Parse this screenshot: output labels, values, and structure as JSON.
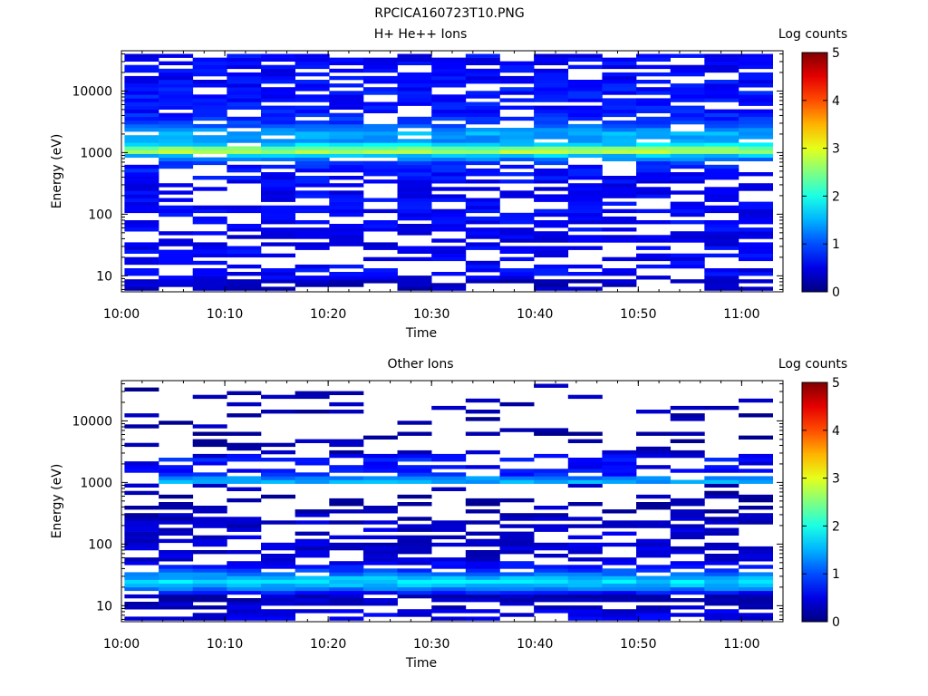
{
  "figure": {
    "title": "RPCICA160723T10.PNG"
  },
  "chart_data": [
    {
      "type": "heatmap",
      "title": "H+ He++ Ions",
      "xlabel": "Time",
      "ylabel": "Energy (eV)",
      "x_ticks": [
        "10:00",
        "10:10",
        "10:20",
        "10:30",
        "10:40",
        "10:50",
        "11:00"
      ],
      "y_ticks": [
        "10",
        "100",
        "1000",
        "10000"
      ],
      "yscale": "log",
      "ylim": [
        5.5,
        45000
      ],
      "xlim_minutes": [
        0,
        64
      ],
      "colorbar": {
        "label": "Log counts",
        "ticks": [
          "0",
          "1",
          "2",
          "3",
          "4",
          "5"
        ],
        "range": [
          0,
          5
        ],
        "colormap": "jet"
      },
      "profile": {
        "description_only": false,
        "energy_eV": [
          8,
          10,
          12,
          18,
          25,
          40,
          60,
          100,
          180,
          300,
          500,
          700,
          900,
          1050,
          1150,
          1300,
          1600,
          2000,
          2400,
          3000,
          5000,
          10000,
          20000,
          35000
        ],
        "log_counts": [
          0.3,
          0.6,
          0.6,
          0.6,
          0.6,
          0.5,
          0.6,
          0.6,
          0.6,
          0.6,
          0.7,
          0.9,
          1.6,
          2.9,
          2.6,
          1.8,
          1.3,
          1.5,
          1.3,
          0.9,
          0.7,
          0.7,
          0.6,
          0.6
        ],
        "gap_probability": [
          0.45,
          0.35,
          0.55,
          0.5,
          0.45,
          0.4,
          0.4,
          0.35,
          0.35,
          0.35,
          0.3,
          0.25,
          0.12,
          0.0,
          0.0,
          0.05,
          0.15,
          0.1,
          0.12,
          0.2,
          0.25,
          0.25,
          0.25,
          0.25
        ]
      }
    },
    {
      "type": "heatmap",
      "title": "Other Ions",
      "xlabel": "Time",
      "ylabel": "Energy (eV)",
      "x_ticks": [
        "10:00",
        "10:10",
        "10:20",
        "10:30",
        "10:40",
        "10:50",
        "11:00"
      ],
      "y_ticks": [
        "10",
        "100",
        "1000",
        "10000"
      ],
      "yscale": "log",
      "ylim": [
        5.5,
        45000
      ],
      "xlim_minutes": [
        0,
        64
      ],
      "colorbar": {
        "label": "Log counts",
        "ticks": [
          "0",
          "1",
          "2",
          "3",
          "4",
          "5"
        ],
        "range": [
          0,
          5
        ],
        "colormap": "jet"
      },
      "profile": {
        "description_only": false,
        "energy_eV": [
          8,
          10,
          12,
          15,
          18,
          21,
          25,
          30,
          40,
          60,
          100,
          180,
          300,
          500,
          700,
          900,
          1050,
          1150,
          1300,
          2000,
          2400,
          3000,
          5000,
          10000,
          20000,
          35000
        ],
        "log_counts": [
          0.5,
          0.3,
          0.3,
          0.3,
          1.1,
          1.5,
          1.7,
          1.4,
          0.8,
          0.4,
          0.4,
          0.4,
          0.3,
          0.2,
          0.2,
          0.3,
          1.6,
          1.4,
          0.8,
          0.5,
          0.8,
          0.3,
          0.2,
          0.2,
          0.2,
          0.2
        ],
        "gap_probability": [
          0.4,
          0.35,
          0.35,
          0.15,
          0.0,
          0.0,
          0.0,
          0.0,
          0.25,
          0.5,
          0.45,
          0.5,
          0.55,
          0.75,
          0.85,
          0.75,
          0.0,
          0.0,
          0.3,
          0.65,
          0.3,
          0.75,
          0.85,
          0.85,
          0.85,
          0.85
        ]
      }
    }
  ]
}
